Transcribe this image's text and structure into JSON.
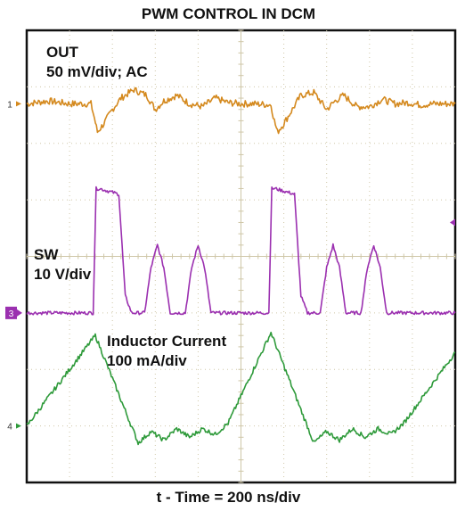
{
  "chart_data": {
    "type": "line",
    "title": "PWM CONTROL IN DCM",
    "xlabel": "t - Time = 200 ns/div",
    "ylabel": "",
    "grid": true,
    "divisions": {
      "x": 10,
      "y": 8
    },
    "xlim": [
      0,
      10
    ],
    "ylim": [
      0,
      8
    ],
    "markers": [
      {
        "label": "1",
        "level": 6.7,
        "color": "#d4891e"
      },
      {
        "label": "3",
        "level": 3.0,
        "color": "#9b30b0"
      },
      {
        "label": "4",
        "level": 1.0,
        "color": "#2e9a3a"
      }
    ],
    "series": [
      {
        "name": "OUT",
        "scale": "50 mV/div; AC",
        "color": "#d4891e",
        "x": [
          0,
          0.5,
          1.0,
          1.5,
          1.58,
          1.65,
          1.8,
          2.0,
          2.2,
          2.5,
          2.8,
          3.0,
          3.2,
          3.5,
          3.8,
          4.1,
          4.4,
          4.7,
          5.0,
          5.3,
          5.7,
          5.78,
          5.85,
          6.0,
          6.2,
          6.4,
          6.7,
          7.0,
          7.2,
          7.4,
          7.7,
          8.0,
          8.3,
          8.6,
          8.9,
          9.2,
          9.5,
          10.0
        ],
        "y": [
          6.7,
          6.75,
          6.7,
          6.7,
          6.45,
          6.2,
          6.35,
          6.6,
          6.8,
          6.95,
          6.85,
          6.6,
          6.75,
          6.85,
          6.7,
          6.65,
          6.8,
          6.72,
          6.7,
          6.7,
          6.68,
          6.4,
          6.2,
          6.35,
          6.6,
          6.85,
          6.9,
          6.6,
          6.75,
          6.85,
          6.65,
          6.65,
          6.78,
          6.7,
          6.72,
          6.68,
          6.7,
          6.7
        ]
      },
      {
        "name": "SW",
        "scale": "10 V/div",
        "color": "#9b30b0",
        "x": [
          0,
          1.55,
          1.62,
          1.7,
          2.15,
          2.3,
          2.45,
          2.75,
          2.9,
          3.05,
          3.2,
          3.35,
          3.5,
          3.7,
          3.85,
          4.0,
          4.15,
          4.3,
          4.5,
          5.65,
          5.72,
          5.8,
          6.25,
          6.4,
          6.55,
          6.85,
          7.0,
          7.15,
          7.3,
          7.45,
          7.6,
          7.8,
          7.95,
          8.1,
          8.25,
          8.4,
          8.6,
          10.0
        ],
        "y": [
          3.0,
          3.0,
          5.2,
          5.2,
          5.1,
          3.3,
          3.0,
          3.0,
          3.8,
          4.2,
          3.8,
          3.0,
          3.0,
          3.0,
          3.8,
          4.2,
          3.8,
          3.0,
          3.0,
          3.0,
          5.2,
          5.2,
          5.1,
          3.3,
          3.0,
          3.0,
          3.8,
          4.2,
          3.8,
          3.0,
          3.0,
          3.0,
          3.8,
          4.2,
          3.8,
          3.0,
          3.0,
          3.0
        ]
      },
      {
        "name": "Inductor Current",
        "scale": "100 mA/div",
        "color": "#2e9a3a",
        "x": [
          0,
          1.6,
          2.6,
          2.9,
          3.2,
          3.5,
          3.8,
          4.1,
          4.4,
          4.7,
          5.7,
          6.7,
          7.0,
          7.3,
          7.6,
          7.9,
          8.2,
          8.5,
          8.8,
          10.0
        ],
        "y": [
          1.0,
          2.6,
          0.7,
          0.9,
          0.75,
          0.95,
          0.8,
          0.95,
          0.85,
          1.05,
          2.65,
          0.7,
          0.9,
          0.75,
          0.95,
          0.8,
          0.95,
          0.85,
          1.05,
          2.3
        ]
      }
    ]
  }
}
